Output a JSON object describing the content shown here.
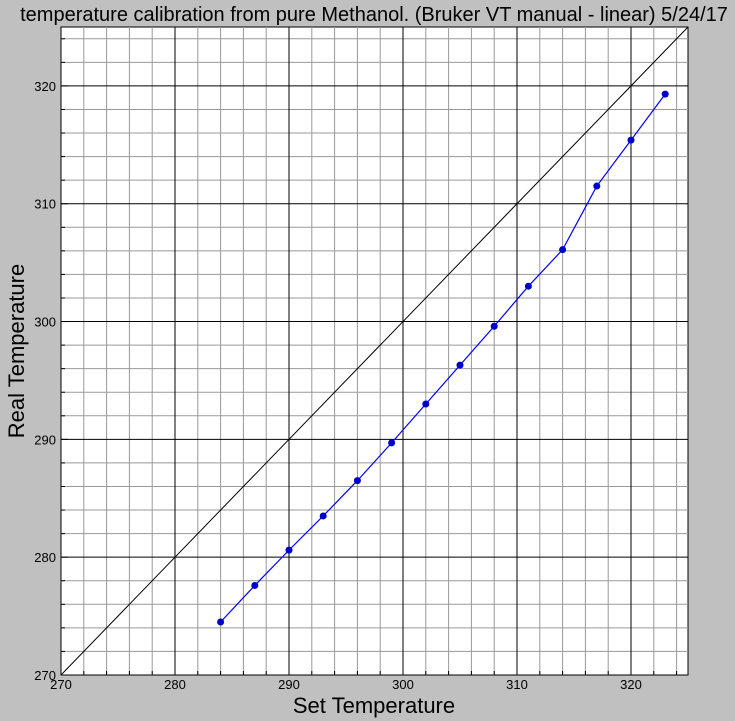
{
  "chart_data": {
    "type": "scatter",
    "title": "temperature calibration from pure Methanol. (Bruker VT manual - linear) 5/24/17",
    "xlabel": "Set Temperature",
    "ylabel": "Real Temperature",
    "xlim": [
      270,
      325
    ],
    "ylim": [
      270,
      325
    ],
    "x_major_ticks": [
      270,
      280,
      290,
      300,
      310,
      320
    ],
    "y_major_ticks": [
      270,
      280,
      290,
      300,
      310,
      320
    ],
    "minor_tick_step": 2,
    "grid": true,
    "background_color": "#c0c0c0",
    "plot_color": "#ffffff",
    "series": [
      {
        "color": "#0000ff",
        "marker_color": "#0000cc",
        "points": [
          [
            284,
            274.5
          ],
          [
            287,
            277.6
          ],
          [
            290,
            280.6
          ],
          [
            293,
            283.5
          ],
          [
            296,
            286.5
          ],
          [
            299,
            289.7
          ],
          [
            302,
            293.0
          ],
          [
            305,
            296.3
          ],
          [
            308,
            299.6
          ],
          [
            311,
            303.0
          ],
          [
            314,
            306.1
          ],
          [
            317,
            311.5
          ],
          [
            320,
            315.4
          ],
          [
            323,
            319.3
          ]
        ]
      }
    ],
    "reference_line": {
      "points": [
        [
          270,
          270
        ],
        [
          325,
          325
        ]
      ],
      "color": "#000000"
    }
  }
}
